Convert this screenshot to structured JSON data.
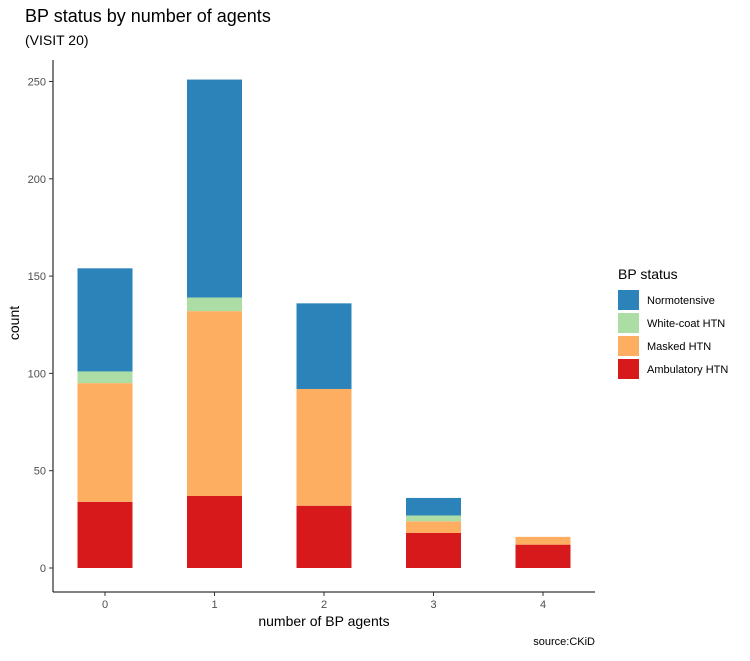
{
  "chart_data": {
    "type": "bar",
    "stacked": true,
    "title": "BP status by number of agents",
    "subtitle": "(VISIT 20)",
    "xlabel": "number of BP agents",
    "ylabel": "count",
    "caption": "source:CKiD",
    "categories": [
      "0",
      "1",
      "2",
      "3",
      "4"
    ],
    "ylim": [
      0,
      250
    ],
    "yticks": [
      0,
      50,
      100,
      150,
      200,
      250
    ],
    "grid": false,
    "legend": {
      "title": "BP status",
      "position": "right",
      "entries": [
        "Normotensive",
        "White-coat HTN",
        "Masked HTN",
        "Ambulatory HTN"
      ]
    },
    "series": [
      {
        "name": "Ambulatory HTN",
        "color": "#D7191C",
        "values": [
          34,
          37,
          32,
          18,
          12
        ]
      },
      {
        "name": "Masked HTN",
        "color": "#FDAE61",
        "values": [
          61,
          95,
          60,
          6,
          4
        ]
      },
      {
        "name": "White-coat HTN",
        "color": "#ABDDA4",
        "values": [
          6,
          7,
          0,
          3,
          0
        ]
      },
      {
        "name": "Normotensive",
        "color": "#2B83BA",
        "values": [
          53,
          112,
          44,
          9,
          0
        ]
      }
    ]
  }
}
